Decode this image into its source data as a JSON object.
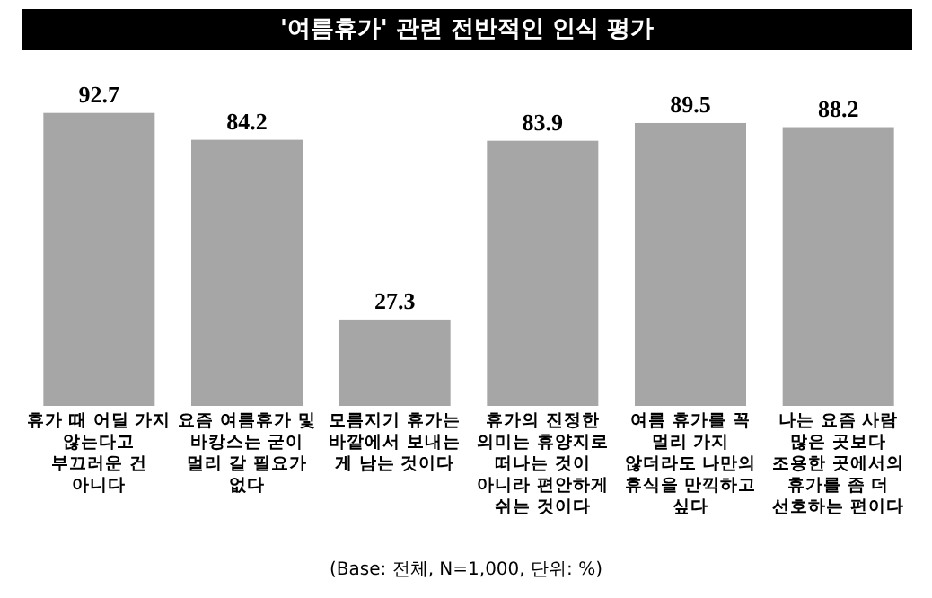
{
  "chart_data": {
    "type": "bar",
    "title": "'여름휴가' 관련 전반적인 인식 평가",
    "categories": [
      "휴가 때 어딜 가지 않는다고 부끄러운 건 아니다",
      "요즘 여름휴가 및 바캉스는 굳이 멀리 갈 필요가 없다",
      "모름지기 휴가는 바깥에서 보내는 게 남는 것이다",
      "휴가의 진정한 의미는 휴양지로 떠나는 것이 아니라 편안하게 쉬는 것이다",
      "여름 휴가를 꼭 멀리 가지 않더라도 나만의 휴식을 만끽하고 싶다",
      "나는 요즘 사람 많은 곳보다 조용한 곳에서의 휴가를 좀 더 선호하는 편이다"
    ],
    "values": [
      92.7,
      84.2,
      27.3,
      83.9,
      89.5,
      88.2
    ],
    "color": "#a6a6a6",
    "data_labels": true,
    "tick_labels": "x",
    "annotations": [
      "(Base: 전체, N=1,000, 단위: %)"
    ]
  }
}
